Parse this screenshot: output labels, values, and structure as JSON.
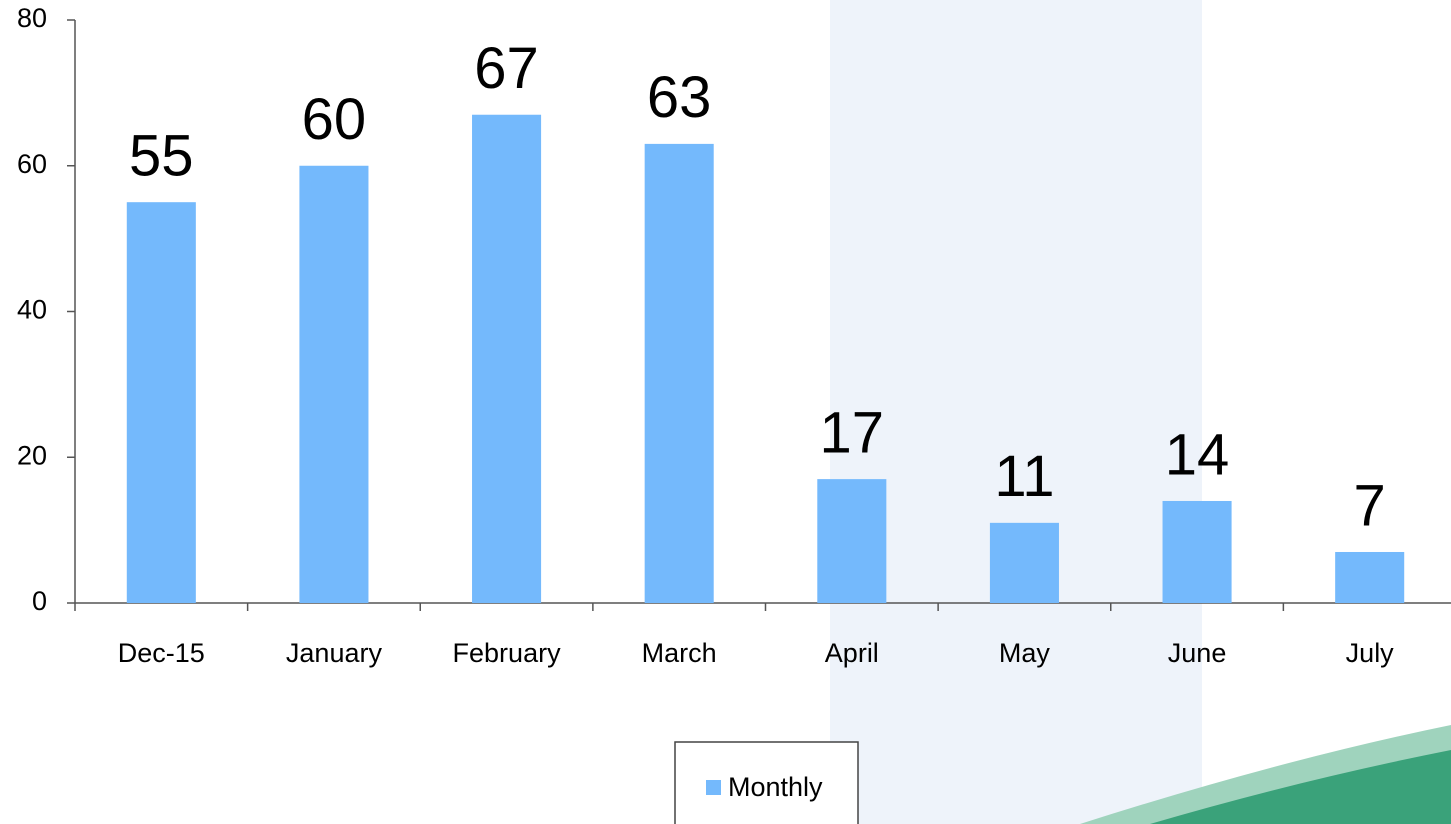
{
  "chart_data": {
    "type": "bar",
    "categories": [
      "Dec-15",
      "January",
      "February",
      "March",
      "April",
      "May",
      "June",
      "July"
    ],
    "series": [
      {
        "name": "Monthly",
        "color": "#74b9fc",
        "values": [
          55,
          60,
          67,
          63,
          17,
          11,
          14,
          7
        ]
      }
    ],
    "ylim": [
      0,
      80
    ],
    "yticks": [
      0,
      20,
      40,
      60,
      80
    ],
    "legend": "bottom"
  }
}
